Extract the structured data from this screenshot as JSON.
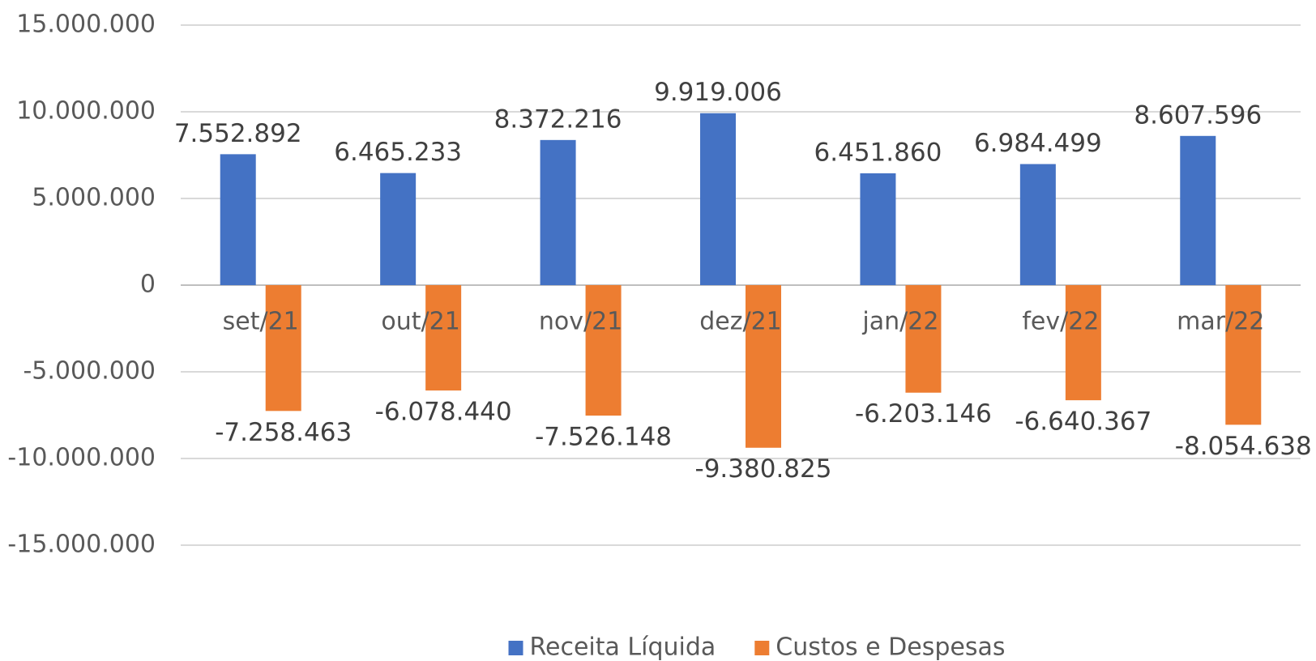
{
  "chart_data": {
    "type": "bar",
    "categories": [
      "set/21",
      "out/21",
      "nov/21",
      "dez/21",
      "jan/22",
      "fev/22",
      "mar/22"
    ],
    "series": [
      {
        "name": "Receita Líquida",
        "color": "#4472c4",
        "values": [
          7552892,
          6465233,
          8372216,
          9919006,
          6451860,
          6984499,
          8607596
        ],
        "value_labels": [
          "7.552.892",
          "6.465.233",
          "8.372.216",
          "9.919.006",
          "6.451.860",
          "6.984.499",
          "8.607.596"
        ]
      },
      {
        "name": "Custos e Despesas",
        "color": "#ed7d31",
        "values": [
          -7258463,
          -6078440,
          -7526148,
          -9380825,
          -6203146,
          -6640367,
          -8054638
        ],
        "value_labels": [
          "-7.258.463",
          "-6.078.440",
          "-7.526.148",
          "-9.380.825",
          "-6.203.146",
          "-6.640.367",
          "-8.054.638"
        ]
      }
    ],
    "ylim": [
      -15000000,
      15000000
    ],
    "yticks": [
      {
        "value": -15000000,
        "label": "-15.000.000"
      },
      {
        "value": -10000000,
        "label": "-10.000.000"
      },
      {
        "value": -5000000,
        "label": "-5.000.000"
      },
      0,
      {
        "value": 5000000,
        "label": "5.000.000"
      },
      {
        "value": 10000000,
        "label": "10.000.000"
      },
      {
        "value": 15000000,
        "label": "15.000.000"
      }
    ],
    "grid": true,
    "legend": "bottom"
  }
}
